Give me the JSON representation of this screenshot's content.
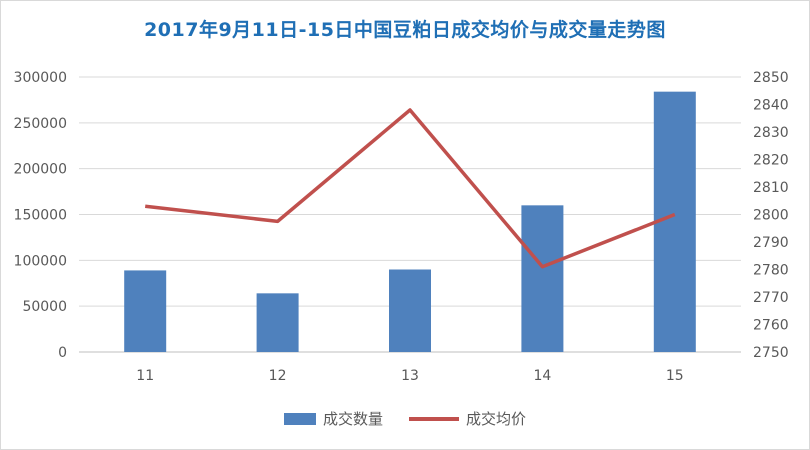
{
  "chart_data": {
    "type": "bar",
    "title": "2017年9月11日-15日中国豆粕日成交均价与成交量走势图",
    "categories": [
      "11",
      "12",
      "13",
      "14",
      "15"
    ],
    "series": [
      {
        "name": "成交数量",
        "type": "bar",
        "axis": "left",
        "values": [
          89000,
          64000,
          90000,
          160000,
          284000
        ]
      },
      {
        "name": "成交均价",
        "type": "line",
        "axis": "right",
        "values": [
          2803,
          2797.5,
          2838,
          2781,
          2800
        ]
      }
    ],
    "y_left": {
      "min": 0,
      "max": 300000,
      "step": 50000,
      "ticks": [
        "0",
        "50000",
        "100000",
        "150000",
        "200000",
        "250000",
        "300000"
      ]
    },
    "y_right": {
      "min": 2750,
      "max": 2850,
      "step": 10,
      "ticks": [
        "2750",
        "2760",
        "2770",
        "2780",
        "2790",
        "2800",
        "2810",
        "2820",
        "2830",
        "2840",
        "2850"
      ]
    },
    "grid": true,
    "legend_position": "bottom"
  },
  "colors": {
    "title": "#1f6fb5",
    "bar": "#4f81bd",
    "line": "#c0504d",
    "grid": "#d9d9d9",
    "axis": "#bfbfbf"
  }
}
